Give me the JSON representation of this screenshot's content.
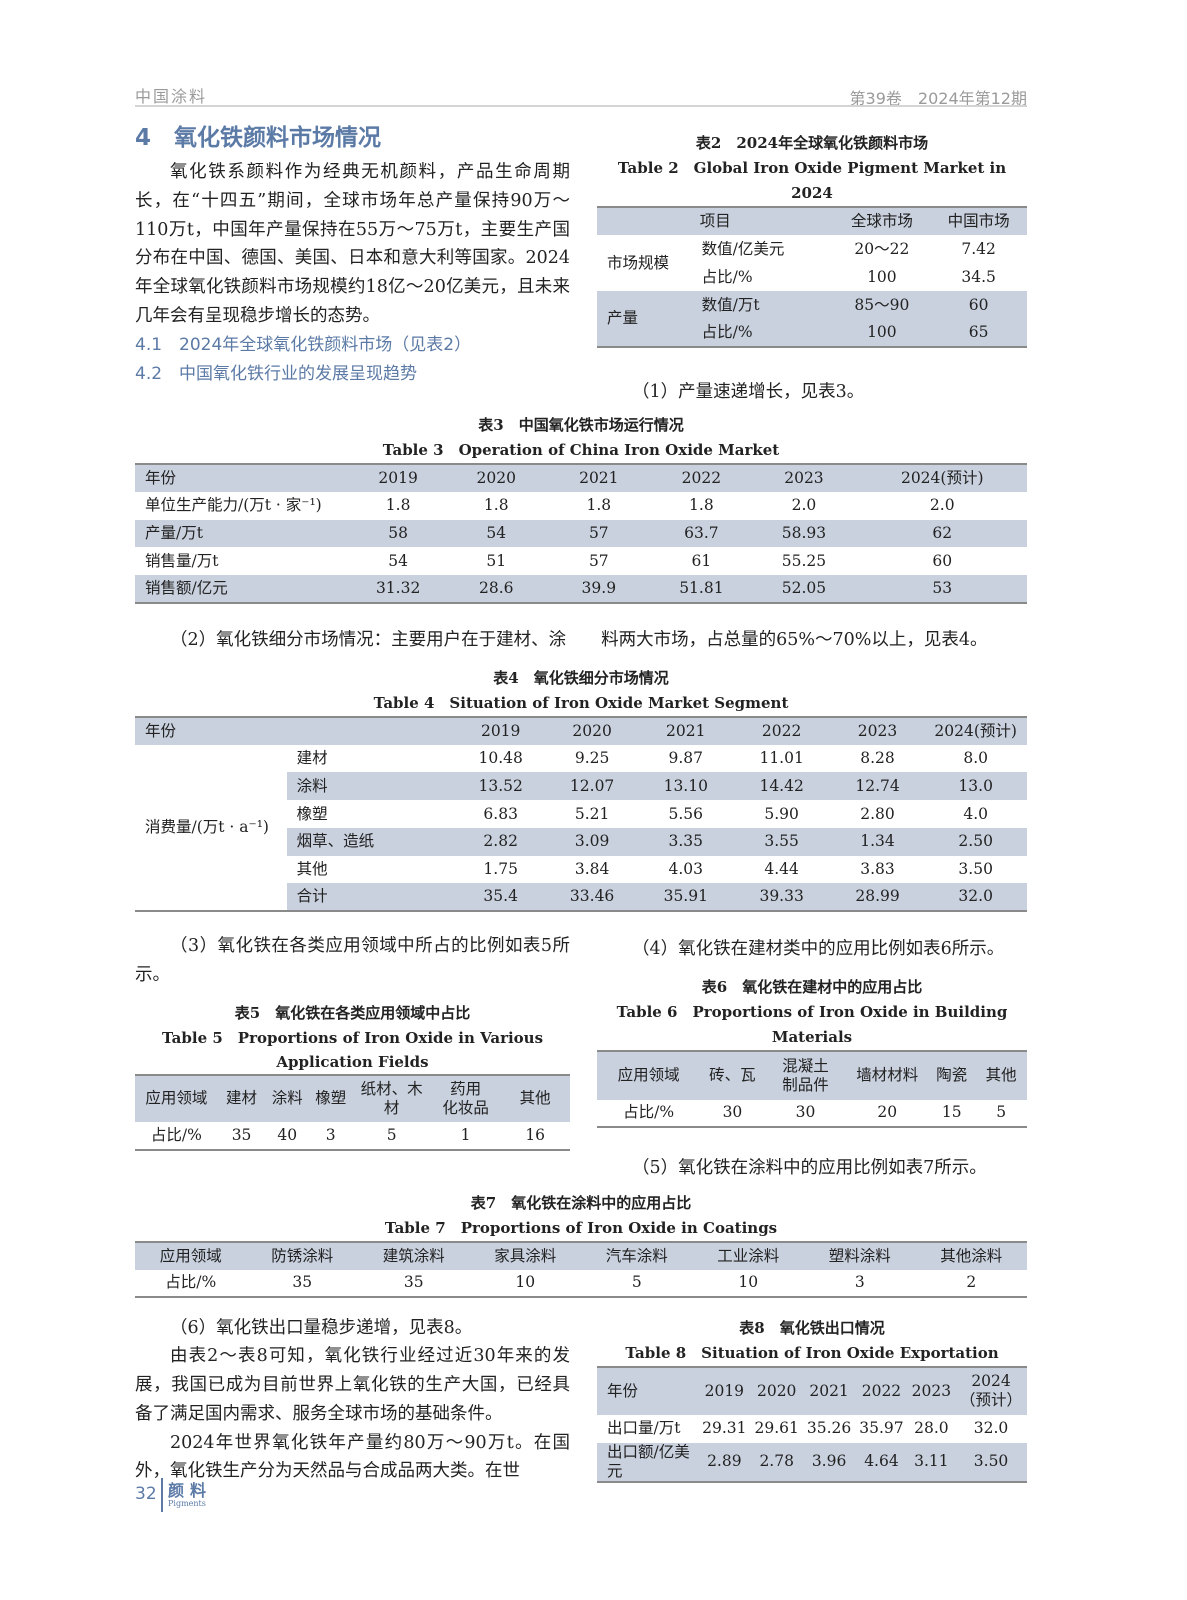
{
  "header": {
    "journal": "中国涂料",
    "issue": "第39卷　2024年第12期"
  },
  "section": {
    "heading": "4　氧化铁颜料市场情况",
    "intro": "氧化铁系颜料作为经典无机颜料，产品生命周期长，在“十四五”期间，全球市场年总产量保持90万～110万t，中国年产量保持在55万～75万t，主要生产国分布在中国、德国、美国、日本和意大利等国家。2024年全球氧化铁颜料市场规模约18亿～20亿美元，且未来几年会有呈现稳步增长的态势。",
    "sub1": "4.1　2024年全球氧化铁颜料市场（见表2）",
    "sub2": "4.2　中国氧化铁行业的发展呈现趋势"
  },
  "paragraphs": {
    "p1": "（1）产量速递增长，见表3。",
    "p2": "（2）氧化铁细分市场情况：主要用户在于建材、涂　　料两大市场，占总量的65%～70%以上，见表4。",
    "p3": "（3）氧化铁在各类应用领域中所占的比例如表5所示。",
    "p4": "（4）氧化铁在建材类中的应用比例如表6所示。",
    "p5": "（5）氧化铁在涂料中的应用比例如表7所示。",
    "p6": "（6）氧化铁出口量稳步递增，见表8。",
    "p7": "由表2～表8可知，氧化铁行业经过近30年来的发展，我国已成为目前世界上氧化铁的生产大国，已经具备了满足国内需求、服务全球市场的基础条件。",
    "p8": "2024年世界氧化铁年产量约80万～90万t。在国外，氧化铁生产分为天然品与合成品两大类。在世"
  },
  "tables": {
    "t2": {
      "caption_cn": "表2　2024年全球氧化铁颜料市场",
      "caption_en": "Table 2　Global Iron Oxide Pigment Market in 2024",
      "header": [
        "项目",
        "全球市场",
        "中国市场"
      ],
      "groups": [
        {
          "label": "市场规模",
          "rows": [
            [
              "数值/亿美元",
              "20～22",
              "7.42"
            ],
            [
              "占比/%",
              "100",
              "34.5"
            ]
          ]
        },
        {
          "label": "产量",
          "rows": [
            [
              "数值/万t",
              "85～90",
              "60"
            ],
            [
              "占比/%",
              "100",
              "65"
            ]
          ]
        }
      ]
    },
    "t3": {
      "caption_cn": "表3　中国氧化铁市场运行情况",
      "caption_en": "Table 3　Operation of China Iron Oxide Market",
      "header": [
        "年份",
        "2019",
        "2020",
        "2021",
        "2022",
        "2023",
        "2024(预计)"
      ],
      "rows": [
        [
          "单位生产能力/(万t · 家⁻¹)",
          "1.8",
          "1.8",
          "1.8",
          "1.8",
          "2.0",
          "2.0"
        ],
        [
          "产量/万t",
          "58",
          "54",
          "57",
          "63.7",
          "58.93",
          "62"
        ],
        [
          "销售量/万t",
          "54",
          "51",
          "57",
          "61",
          "55.25",
          "60"
        ],
        [
          "销售额/亿元",
          "31.32",
          "28.6",
          "39.9",
          "51.81",
          "52.05",
          "53"
        ]
      ]
    },
    "t4": {
      "caption_cn": "表4　氧化铁细分市场情况",
      "caption_en": "Table 4　Situation of Iron Oxide Market Segment",
      "header": [
        "年份",
        "",
        "2019",
        "2020",
        "2021",
        "2022",
        "2023",
        "2024(预计)"
      ],
      "group_label": "消费量/(万t · a⁻¹)",
      "rows": [
        [
          "建材",
          "10.48",
          "9.25",
          "9.87",
          "11.01",
          "8.28",
          "8.0"
        ],
        [
          "涂料",
          "13.52",
          "12.07",
          "13.10",
          "14.42",
          "12.74",
          "13.0"
        ],
        [
          "橡塑",
          "6.83",
          "5.21",
          "5.56",
          "5.90",
          "2.80",
          "4.0"
        ],
        [
          "烟草、造纸",
          "2.82",
          "3.09",
          "3.35",
          "3.55",
          "1.34",
          "2.50"
        ],
        [
          "其他",
          "1.75",
          "3.84",
          "4.03",
          "4.44",
          "3.83",
          "3.50"
        ],
        [
          "合计",
          "35.4",
          "33.46",
          "35.91",
          "39.33",
          "28.99",
          "32.0"
        ]
      ]
    },
    "t5": {
      "caption_cn": "表5　氧化铁在各类应用领域中占比",
      "caption_en": "Table 5　Proportions of Iron Oxide in Various Application Fields",
      "header": [
        "应用领域",
        "建材",
        "涂料",
        "橡塑",
        "纸材、木材",
        "药用\n化妆品",
        "其他"
      ],
      "rows": [
        [
          "占比/%",
          "35",
          "40",
          "3",
          "5",
          "1",
          "16"
        ]
      ]
    },
    "t6": {
      "caption_cn": "表6　氧化铁在建材中的应用占比",
      "caption_en": "Table 6　Proportions of Iron Oxide in Building Materials",
      "header": [
        "应用领域",
        "砖、瓦",
        "混凝土\n制品件",
        "墙材材料",
        "陶瓷",
        "其他"
      ],
      "rows": [
        [
          "占比/%",
          "30",
          "30",
          "20",
          "15",
          "5"
        ]
      ]
    },
    "t7": {
      "caption_cn": "表7　氧化铁在涂料中的应用占比",
      "caption_en": "Table 7　Proportions of Iron Oxide in Coatings",
      "header": [
        "应用领域",
        "防锈涂料",
        "建筑涂料",
        "家具涂料",
        "汽车涂料",
        "工业涂料",
        "塑料涂料",
        "其他涂料"
      ],
      "rows": [
        [
          "占比/%",
          "35",
          "35",
          "10",
          "5",
          "10",
          "3",
          "2"
        ]
      ]
    },
    "t8": {
      "caption_cn": "表8　氧化铁出口情况",
      "caption_en": "Table 8　Situation of Iron Oxide Exportation",
      "header": [
        "年份",
        "2019",
        "2020",
        "2021",
        "2022",
        "2023",
        "2024\n（预计）"
      ],
      "rows": [
        [
          "出口量/万t",
          "29.31",
          "29.61",
          "35.26",
          "35.97",
          "28.0",
          "32.0"
        ],
        [
          "出口额/亿美元",
          "2.89",
          "2.78",
          "3.96",
          "4.64",
          "3.11",
          "3.50"
        ]
      ]
    }
  },
  "footer": {
    "page": "32",
    "journal_cn": "颜料",
    "journal_en": "Pigments"
  },
  "colors": {
    "accent": "#5b7aa6",
    "row_shade": "#c9d1de"
  }
}
